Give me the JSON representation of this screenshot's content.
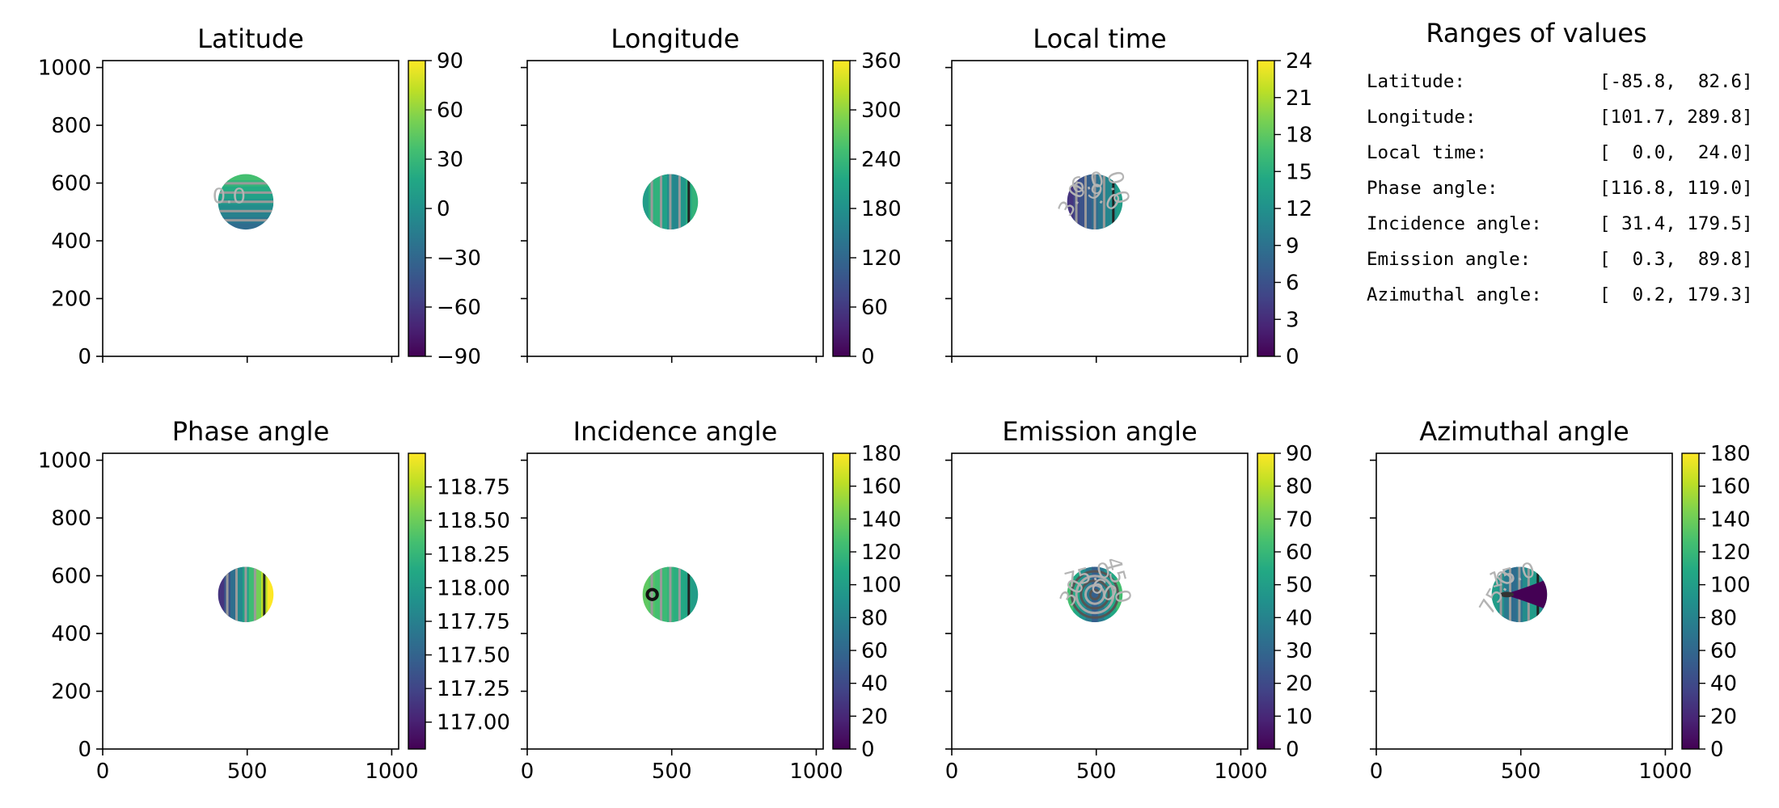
{
  "panels": [
    {
      "id": "lat",
      "title": "Latitude",
      "cbar": {
        "min": -90,
        "max": 90,
        "ticks": [
          "90",
          "60",
          "30",
          "0",
          "−30",
          "−60",
          "−90"
        ],
        "tick_values": [
          90,
          60,
          30,
          0,
          -30,
          -60,
          -90
        ]
      }
    },
    {
      "id": "lon",
      "title": "Longitude",
      "cbar": {
        "min": 0,
        "max": 360,
        "ticks": [
          "360",
          "300",
          "240",
          "180",
          "120",
          "60",
          "0"
        ],
        "tick_values": [
          360,
          300,
          240,
          180,
          120,
          60,
          0
        ]
      }
    },
    {
      "id": "lt",
      "title": "Local time",
      "cbar": {
        "min": 0,
        "max": 24,
        "ticks": [
          "24",
          "21",
          "18",
          "15",
          "12",
          "9",
          "6",
          "3",
          "0"
        ],
        "tick_values": [
          24,
          21,
          18,
          15,
          12,
          9,
          6,
          3,
          0
        ]
      }
    },
    {
      "id": "phase",
      "title": "Phase angle",
      "cbar": {
        "min": 116.8,
        "max": 119.0,
        "ticks": [
          "118.75",
          "118.50",
          "118.25",
          "118.00",
          "117.75",
          "117.50",
          "117.25",
          "117.00"
        ],
        "tick_values": [
          118.75,
          118.5,
          118.25,
          118.0,
          117.75,
          117.5,
          117.25,
          117.0
        ]
      }
    },
    {
      "id": "inc",
      "title": "Incidence angle",
      "cbar": {
        "min": 0,
        "max": 180,
        "ticks": [
          "180",
          "160",
          "140",
          "120",
          "100",
          "80",
          "60",
          "40",
          "20",
          "0"
        ],
        "tick_values": [
          180,
          160,
          140,
          120,
          100,
          80,
          60,
          40,
          20,
          0
        ]
      }
    },
    {
      "id": "emi",
      "title": "Emission angle",
      "cbar": {
        "min": 0,
        "max": 90,
        "ticks": [
          "90",
          "80",
          "70",
          "60",
          "50",
          "40",
          "30",
          "20",
          "10",
          "0"
        ],
        "tick_values": [
          90,
          80,
          70,
          60,
          50,
          40,
          30,
          20,
          10,
          0
        ]
      }
    },
    {
      "id": "azi",
      "title": "Azimuthal angle",
      "cbar": {
        "min": 0,
        "max": 180,
        "ticks": [
          "180",
          "160",
          "140",
          "120",
          "100",
          "80",
          "60",
          "40",
          "20",
          "0"
        ],
        "tick_values": [
          180,
          160,
          140,
          120,
          100,
          80,
          60,
          40,
          20,
          0
        ]
      }
    }
  ],
  "contour_labels": {
    "lat": [
      "0.0"
    ],
    "lt": [
      "3.0",
      "6.0",
      "9.0",
      "0.0"
    ],
    "emi": [
      "30",
      "75.0",
      "60",
      "45.0"
    ],
    "azi": [
      "75.0",
      "15.0"
    ]
  },
  "axes": {
    "y_ticks": [
      "0",
      "200",
      "400",
      "600",
      "800",
      "1000"
    ],
    "y_tick_values": [
      0,
      200,
      400,
      600,
      800,
      1000
    ],
    "x_ticks": [
      "0",
      "500",
      "1000"
    ],
    "x_tick_values": [
      0,
      500,
      1000
    ],
    "xlim": [
      0,
      1024
    ],
    "ylim": [
      0,
      1024
    ]
  },
  "disc": {
    "center_x": 495,
    "center_y": 535,
    "radius": 96
  },
  "ranges": {
    "title": "Ranges of values",
    "rows": [
      {
        "label": "Latitude:",
        "value": "[-85.8,  82.6]"
      },
      {
        "label": "Longitude:",
        "value": "[101.7, 289.8]"
      },
      {
        "label": "Local time:",
        "value": "[  0.0,  24.0]"
      },
      {
        "label": "Phase angle:",
        "value": "[116.8, 119.0]"
      },
      {
        "label": "Incidence angle:",
        "value": "[ 31.4, 179.5]"
      },
      {
        "label": "Emission angle:",
        "value": "[  0.3,  89.8]"
      },
      {
        "label": "Azimuthal angle:",
        "value": "[  0.2, 179.3]"
      }
    ]
  },
  "chart_data": {
    "type": "heatmap",
    "colormap": "viridis",
    "note_panels": [
      "Latitude",
      "Longitude",
      "Local time",
      "Phase angle",
      "Incidence angle",
      "Emission angle",
      "Azimuthal angle"
    ],
    "xlim": [
      0,
      1024
    ],
    "ylim": [
      0,
      1024
    ],
    "disc_center": [
      495,
      535
    ],
    "disc_radius": 96,
    "value_ranges": {
      "Latitude": [
        -85.8,
        82.6
      ],
      "Longitude": [
        101.7,
        289.8
      ],
      "Local time": [
        0.0,
        24.0
      ],
      "Phase angle": [
        116.8,
        119.0
      ],
      "Incidence angle": [
        31.4,
        179.5
      ],
      "Emission angle": [
        0.3,
        89.8
      ],
      "Azimuthal angle": [
        0.2,
        179.3
      ]
    }
  }
}
